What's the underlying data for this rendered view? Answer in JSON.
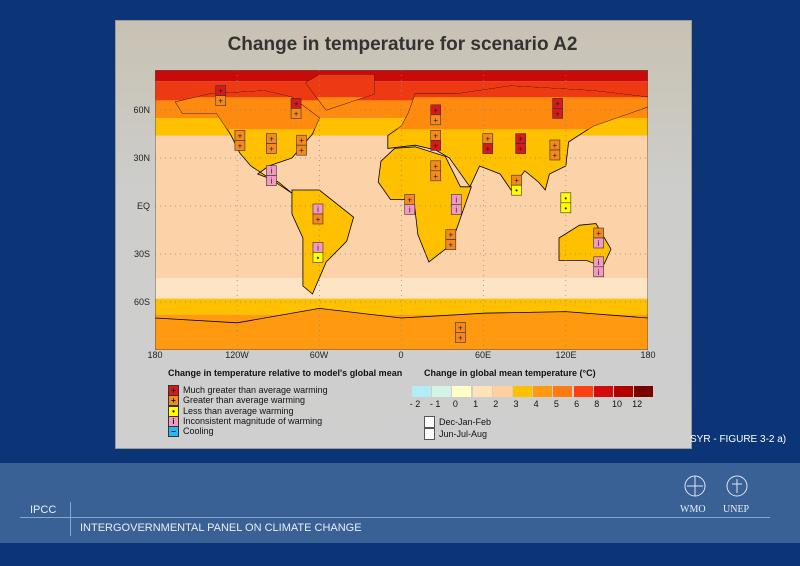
{
  "chart_data": {
    "type": "map",
    "title": "Change in temperature for scenario A2",
    "lon_ticks": [
      "180",
      "120W",
      "60W",
      "0",
      "60E",
      "120E",
      "180"
    ],
    "lat_ticks": [
      "60N",
      "30N",
      "EQ",
      "30S",
      "60S"
    ],
    "grid": true,
    "regional_legend": {
      "title": "Change in temperature relative to model's global mean",
      "items": [
        {
          "key": "much",
          "label": "Much greater than average warming",
          "color": "#d7191c",
          "glyph": "++"
        },
        {
          "key": "greater",
          "label": "Greater than average warming",
          "color": "#f5891f",
          "glyph": "+"
        },
        {
          "key": "less",
          "label": "Less than average warming",
          "color": "#ffff00",
          "glyph": "•"
        },
        {
          "key": "inconsistent",
          "label": "Inconsistent magnitude of warming",
          "color": "#f49ac1",
          "glyph": "i"
        },
        {
          "key": "cooling",
          "label": "Cooling",
          "color": "#29b6f6",
          "glyph": "−"
        }
      ]
    },
    "colorbar": {
      "title": "Change in global mean temperature (°C)",
      "labels": [
        "- 2",
        "- 1",
        "0",
        "1",
        "2",
        "3",
        "4",
        "5",
        "6",
        "8",
        "10",
        "12"
      ],
      "colors": [
        "#b3ecf7",
        "#d4f5e6",
        "#ffffc8",
        "#ffe3b8",
        "#ffcf9e",
        "#ffc000",
        "#ff9a10",
        "#ff7a10",
        "#ff3f10",
        "#d40b0b",
        "#b50000",
        "#7a0000"
      ]
    },
    "season_legend": [
      "Dec-Jan-Feb",
      "Jun-Jul-Aug"
    ],
    "regions": [
      {
        "lon": -132,
        "lat": 69,
        "djf": "much",
        "jja": "greater"
      },
      {
        "lon": -118,
        "lat": 41,
        "djf": "greater",
        "jja": "greater"
      },
      {
        "lon": -95,
        "lat": 39,
        "djf": "greater",
        "jja": "greater"
      },
      {
        "lon": -73,
        "lat": 38,
        "djf": "greater",
        "jja": "greater"
      },
      {
        "lon": -77,
        "lat": 61,
        "djf": "much",
        "jja": "greater"
      },
      {
        "lon": -95,
        "lat": 19,
        "djf": "inconsistent",
        "jja": "inconsistent"
      },
      {
        "lon": -61,
        "lat": -5,
        "djf": "inconsistent",
        "jja": "greater"
      },
      {
        "lon": -61,
        "lat": -29,
        "djf": "inconsistent",
        "jja": "less"
      },
      {
        "lon": 6,
        "lat": 1,
        "djf": "greater",
        "jja": "inconsistent"
      },
      {
        "lon": 25,
        "lat": 22,
        "djf": "greater",
        "jja": "greater"
      },
      {
        "lon": 40,
        "lat": 1,
        "djf": "inconsistent",
        "jja": "inconsistent"
      },
      {
        "lon": 36,
        "lat": -21,
        "djf": "greater",
        "jja": "greater"
      },
      {
        "lon": 25,
        "lat": 41,
        "djf": "greater",
        "jja": "much"
      },
      {
        "lon": 25,
        "lat": 57,
        "djf": "much",
        "jja": "greater"
      },
      {
        "lon": 63,
        "lat": 39,
        "djf": "greater",
        "jja": "much"
      },
      {
        "lon": 87,
        "lat": 39,
        "djf": "much",
        "jja": "much"
      },
      {
        "lon": 112,
        "lat": 35,
        "djf": "greater",
        "jja": "greater"
      },
      {
        "lon": 84,
        "lat": 13,
        "djf": "greater",
        "jja": "less"
      },
      {
        "lon": 120,
        "lat": 2,
        "djf": "less",
        "jja": "less"
      },
      {
        "lon": 144,
        "lat": -20,
        "djf": "greater",
        "jja": "inconsistent"
      },
      {
        "lon": 144,
        "lat": -38,
        "djf": "inconsistent",
        "jja": "inconsistent"
      },
      {
        "lon": 43,
        "lat": -79,
        "djf": "greater",
        "jja": "greater"
      },
      {
        "lon": 114,
        "lat": 61,
        "djf": "much",
        "jja": "much"
      }
    ]
  },
  "figure_label": "SYR - FIGURE 3-2 a)",
  "footer": {
    "short": "IPCC",
    "full": "INTERGOVERNMENTAL PANEL ON CLIMATE CHANGE",
    "logos": [
      "WMO",
      "UNEP"
    ]
  },
  "colors": {
    "background": "#0c3577",
    "footer": "#3a6196"
  }
}
